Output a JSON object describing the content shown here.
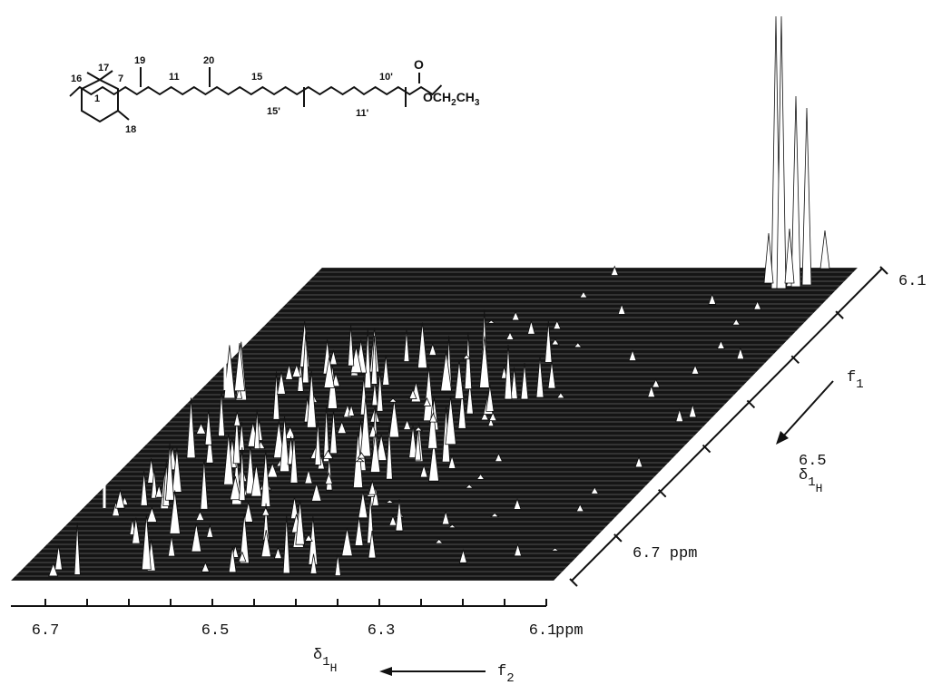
{
  "structure": {
    "labels": [
      "16",
      "17",
      "7",
      "19",
      "11",
      "20",
      "15",
      "15'",
      "10'",
      "11'",
      "1",
      "18",
      "O"
    ],
    "ester": {
      "text": "OCH",
      "sub1": "2",
      "mid": "CH",
      "sub2": "3"
    }
  },
  "f2_axis": {
    "ticks": [
      "6.7",
      "6.5",
      "6.3",
      "6.1"
    ],
    "unit": "ppm",
    "title": {
      "symbol": "δ",
      "sub": "1",
      "subsub": "H"
    },
    "direction": {
      "text": "f",
      "sub": "2"
    }
  },
  "f1_axis": {
    "ticks": [
      "6.1",
      "6.5",
      "6.7 ppm"
    ],
    "title": {
      "symbol": "δ",
      "sub": "1",
      "subsub": "H"
    },
    "direction": {
      "text": "f",
      "sub": "1"
    }
  }
}
